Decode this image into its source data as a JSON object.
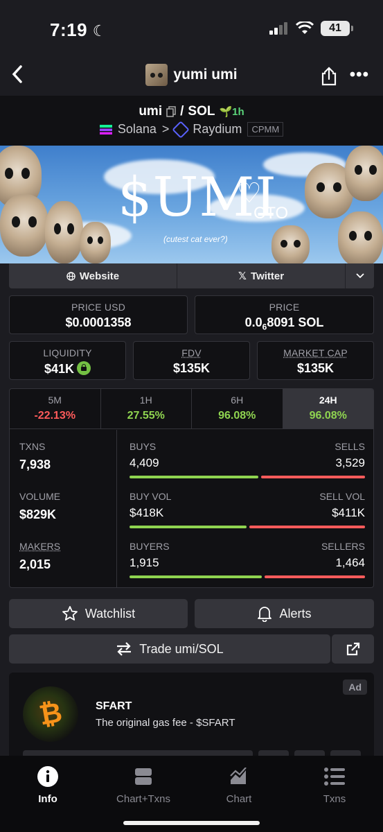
{
  "status_bar": {
    "time": "7:19",
    "battery": "41"
  },
  "header": {
    "title": "yumi umi"
  },
  "pair": {
    "base": "umi",
    "separator": "/",
    "quote": "SOL",
    "age": "1h",
    "chain": "Solana",
    "arrow": ">",
    "dex": "Raydium",
    "pool_type": "CPMM"
  },
  "banner": {
    "title": "$UMI",
    "tag": "CTO",
    "subtitle": "(cutest cat ever?)"
  },
  "links": {
    "website": "Website",
    "twitter": "Twitter"
  },
  "metrics": {
    "price_usd": {
      "label": "PRICE USD",
      "value": "$0.0001358"
    },
    "price": {
      "label": "PRICE",
      "value_prefix": "0.0",
      "value_sub": "6",
      "value_rest": "8091 SOL"
    },
    "liquidity": {
      "label": "LIQUIDITY",
      "value": "$41K"
    },
    "fdv": {
      "label": "FDV",
      "value": "$135K"
    },
    "market_cap": {
      "label": "MARKET CAP",
      "value": "$135K"
    }
  },
  "timeframes": [
    {
      "label": "5M",
      "value": "-22.13%"
    },
    {
      "label": "1H",
      "value": "27.55%"
    },
    {
      "label": "6H",
      "value": "96.08%"
    },
    {
      "label": "24H",
      "value": "96.08%"
    }
  ],
  "stats": {
    "txns": {
      "label": "TXNS",
      "value": "7,938"
    },
    "volume": {
      "label": "VOLUME",
      "value": "$829K"
    },
    "makers": {
      "label": "MAKERS",
      "value": "2,015"
    },
    "buys": {
      "label": "BUYS",
      "value": "4,409",
      "share": 0.555
    },
    "sells": {
      "label": "SELLS",
      "value": "3,529"
    },
    "buy_vol": {
      "label": "BUY VOL",
      "value": "$418K",
      "share": 0.504
    },
    "sell_vol": {
      "label": "SELL VOL",
      "value": "$411K"
    },
    "buyers": {
      "label": "BUYERS",
      "value": "1,915",
      "share": 0.567
    },
    "sellers": {
      "label": "SELLERS",
      "value": "1,464"
    }
  },
  "actions": {
    "watchlist": "Watchlist",
    "alerts": "Alerts",
    "trade": "Trade umi/SOL"
  },
  "ad": {
    "badge": "Ad",
    "name": "SFART",
    "description": "The original gas fee - $SFART",
    "logo_glyph": "₿"
  },
  "tabbar": [
    {
      "label": "Info",
      "icon": "info-icon"
    },
    {
      "label": "Chart+Txns",
      "icon": "split-icon"
    },
    {
      "label": "Chart",
      "icon": "chart-icon"
    },
    {
      "label": "Txns",
      "icon": "list-icon"
    }
  ],
  "colors": {
    "positive": "#8fd450",
    "negative": "#ff5b5b",
    "age": "#5bd47a"
  }
}
